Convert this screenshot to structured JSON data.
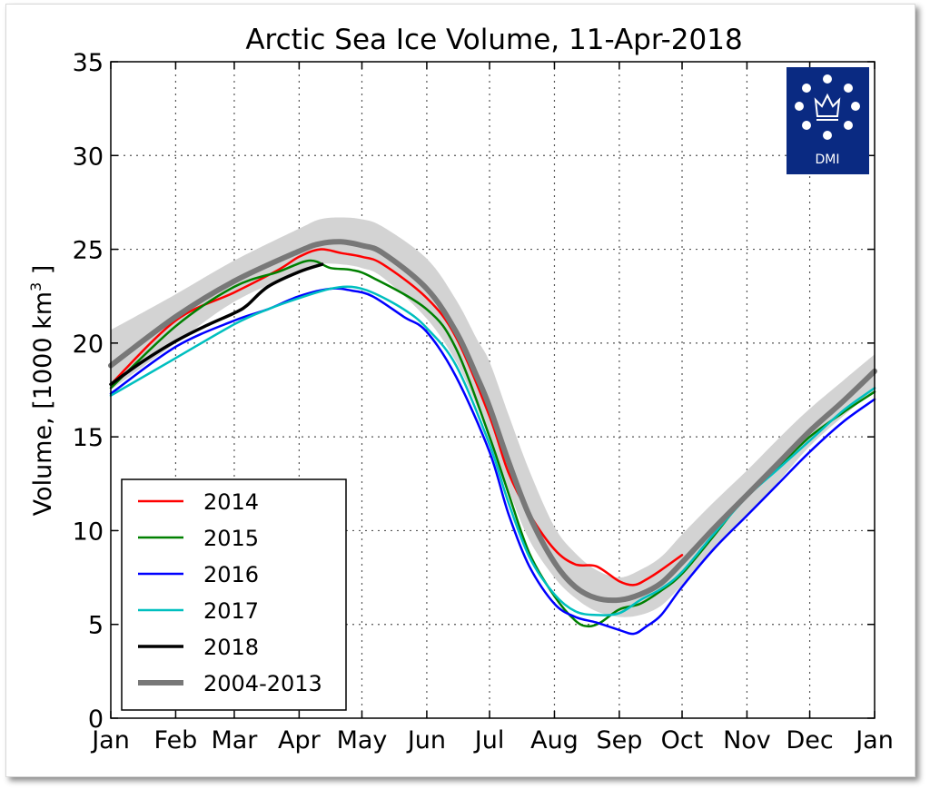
{
  "chart_data": {
    "type": "line",
    "title": "Arctic Sea Ice Volume, 11-Apr-2018",
    "ylabel": "Volume, [1000 km",
    "ylabel_sup": "3",
    "ylabel_end": " ]",
    "xlim": [
      0,
      365
    ],
    "ylim": [
      0,
      35
    ],
    "grid": true,
    "legend_position": "lower-left",
    "x_ticks": [
      {
        "label": "Jan",
        "day": 0
      },
      {
        "label": "Feb",
        "day": 31
      },
      {
        "label": "Mar",
        "day": 59
      },
      {
        "label": "Apr",
        "day": 90
      },
      {
        "label": "May",
        "day": 120
      },
      {
        "label": "Jun",
        "day": 151
      },
      {
        "label": "Jul",
        "day": 181
      },
      {
        "label": "Aug",
        "day": 212
      },
      {
        "label": "Sep",
        "day": 243
      },
      {
        "label": "Oct",
        "day": 273
      },
      {
        "label": "Nov",
        "day": 304
      },
      {
        "label": "Dec",
        "day": 334
      },
      {
        "label": "Jan",
        "day": 365
      }
    ],
    "y_ticks": [
      0,
      5,
      10,
      15,
      20,
      25,
      30,
      35
    ],
    "band": {
      "x": [
        0,
        31,
        59,
        90,
        100,
        110,
        120,
        130,
        151,
        165,
        175,
        181,
        190,
        200,
        212,
        222,
        232,
        243,
        253,
        263,
        273,
        288,
        304,
        319,
        334,
        350,
        365
      ],
      "lower": [
        17.5,
        20.0,
        22.2,
        23.8,
        24.2,
        24.2,
        24.0,
        23.5,
        21.3,
        19.0,
        16.6,
        15.0,
        12.2,
        9.5,
        7.5,
        6.4,
        5.7,
        5.4,
        5.5,
        6.0,
        7.1,
        8.9,
        10.8,
        12.6,
        14.5,
        16.1,
        17.5
      ],
      "upper": [
        20.7,
        22.6,
        24.4,
        26.1,
        26.6,
        26.7,
        26.6,
        26.2,
        24.5,
        22.3,
        20.2,
        19.0,
        16.2,
        13.2,
        10.2,
        8.8,
        7.9,
        7.5,
        7.9,
        8.6,
        9.8,
        11.5,
        13.2,
        14.9,
        16.5,
        18.0,
        19.4
      ]
    },
    "series": [
      {
        "name": "2014",
        "color": "#ff0000",
        "width": 2.5,
        "x": [
          0,
          31,
          59,
          80,
          90,
          100,
          110,
          120,
          130,
          151,
          165,
          181,
          190,
          200,
          212,
          222,
          232,
          243,
          250,
          256,
          263,
          273
        ],
        "y": [
          17.8,
          21.2,
          22.7,
          23.9,
          24.6,
          25.0,
          24.8,
          24.6,
          24.2,
          22.4,
          20.3,
          16.1,
          13.1,
          10.9,
          9.0,
          8.2,
          8.1,
          7.3,
          7.1,
          7.4,
          7.9,
          8.7
        ]
      },
      {
        "name": "2015",
        "color": "#008000",
        "width": 2.5,
        "x": [
          0,
          31,
          59,
          80,
          95,
          105,
          115,
          125,
          151,
          165,
          181,
          190,
          200,
          212,
          222,
          228,
          234,
          243,
          253,
          263,
          273,
          288,
          304,
          319,
          334,
          350,
          365
        ],
        "y": [
          17.6,
          20.9,
          23.0,
          23.8,
          24.4,
          24.0,
          23.9,
          23.5,
          21.8,
          19.7,
          15.0,
          12.0,
          8.8,
          6.5,
          5.2,
          4.9,
          5.1,
          5.8,
          6.1,
          6.8,
          7.7,
          9.7,
          11.9,
          13.4,
          15.0,
          16.3,
          17.4
        ]
      },
      {
        "name": "2016",
        "color": "#0000ff",
        "width": 2.5,
        "x": [
          0,
          31,
          59,
          75,
          90,
          105,
          115,
          125,
          140,
          151,
          165,
          181,
          190,
          200,
          212,
          222,
          232,
          243,
          250,
          256,
          263,
          273,
          288,
          304,
          319,
          334,
          350,
          365
        ],
        "y": [
          17.3,
          19.8,
          21.2,
          21.8,
          22.5,
          22.9,
          22.8,
          22.5,
          21.4,
          20.6,
          18.2,
          14.2,
          10.9,
          8.1,
          6.1,
          5.4,
          5.1,
          4.7,
          4.5,
          4.9,
          5.5,
          7.0,
          9.0,
          10.8,
          12.5,
          14.2,
          15.8,
          17.0
        ]
      },
      {
        "name": "2017",
        "color": "#00bfbf",
        "width": 2.5,
        "x": [
          0,
          31,
          59,
          75,
          90,
          105,
          115,
          125,
          140,
          151,
          165,
          181,
          190,
          200,
          212,
          222,
          232,
          243,
          253,
          263,
          273,
          288,
          304,
          319,
          334,
          350,
          365
        ],
        "y": [
          17.2,
          19.2,
          21.0,
          21.8,
          22.4,
          22.9,
          23.0,
          22.7,
          21.8,
          20.8,
          18.8,
          14.6,
          11.5,
          8.6,
          6.6,
          5.7,
          5.5,
          5.6,
          6.3,
          6.9,
          7.8,
          9.8,
          11.8,
          13.3,
          14.8,
          16.4,
          17.6
        ]
      },
      {
        "name": "2018",
        "color": "#000000",
        "width": 3.5,
        "x": [
          0,
          15,
          31,
          45,
          59,
          65,
          75,
          90,
          101
        ],
        "y": [
          17.8,
          19.0,
          20.1,
          20.9,
          21.6,
          22.0,
          23.0,
          23.8,
          24.2
        ]
      },
      {
        "name": "2004-2013",
        "color": "#787878",
        "width": 6,
        "x": [
          0,
          31,
          59,
          90,
          100,
          110,
          120,
          130,
          151,
          165,
          175,
          181,
          190,
          200,
          212,
          222,
          232,
          243,
          253,
          263,
          273,
          288,
          304,
          319,
          334,
          350,
          365
        ],
        "y": [
          18.8,
          21.4,
          23.3,
          24.9,
          25.3,
          25.4,
          25.2,
          24.8,
          22.9,
          20.6,
          18.2,
          16.6,
          13.7,
          10.8,
          8.3,
          7.0,
          6.4,
          6.3,
          6.6,
          7.2,
          8.3,
          10.1,
          11.9,
          13.6,
          15.3,
          16.9,
          18.5
        ]
      }
    ]
  },
  "logo": {
    "text": "DMI",
    "background": "#0a2a82"
  }
}
